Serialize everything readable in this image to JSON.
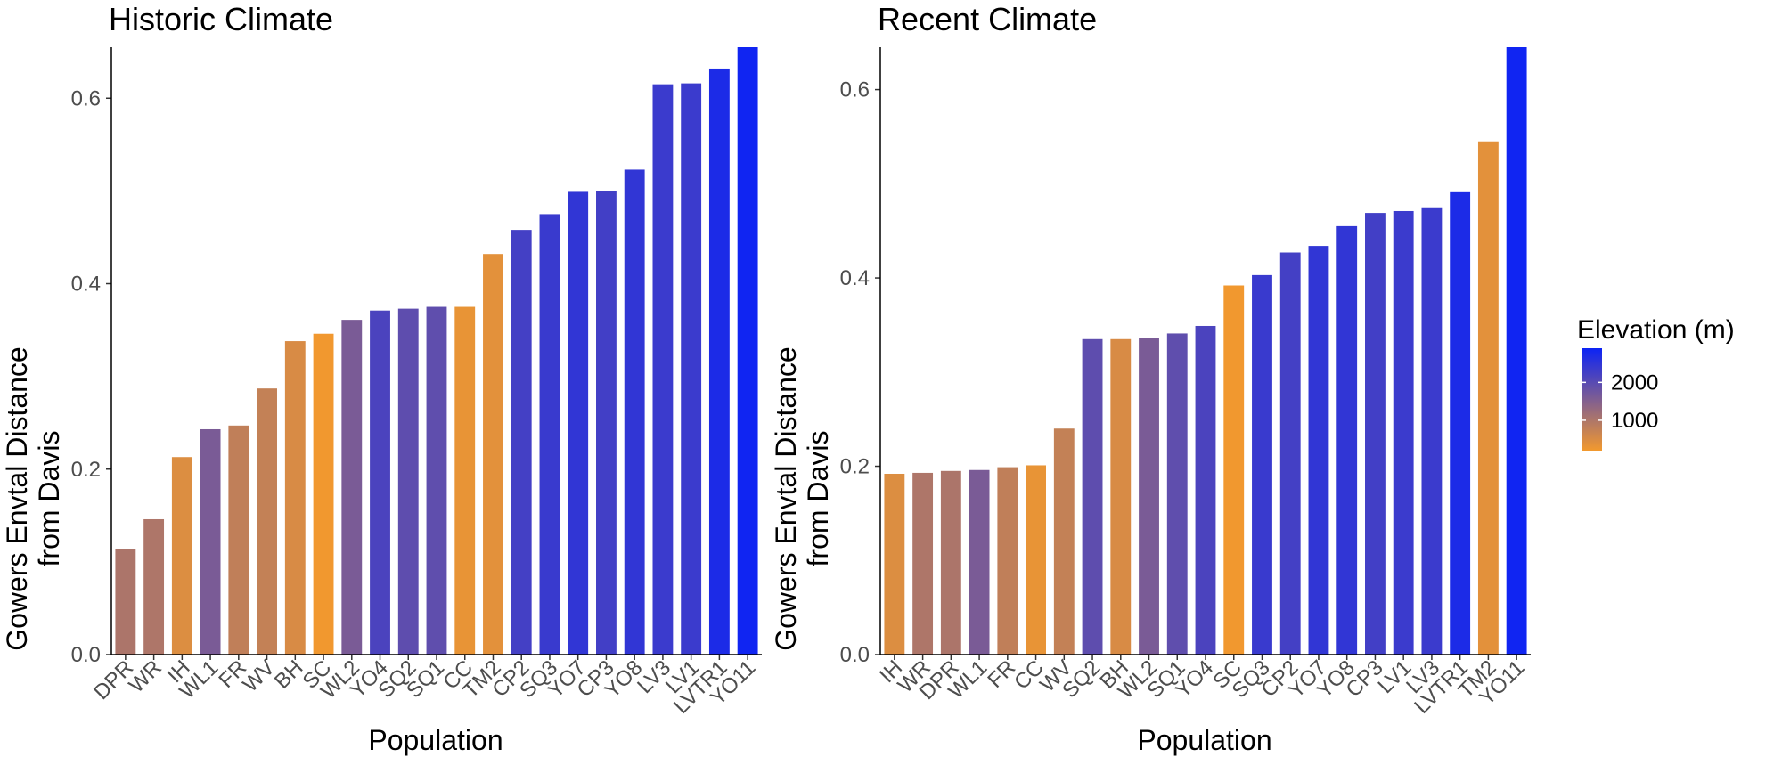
{
  "chart_data": [
    {
      "type": "bar",
      "title": "Historic Climate",
      "xlabel": "Population",
      "ylabel": "Gowers Envtal Distance from Davis",
      "ylabel_lines": [
        "Gowers Envtal Distance",
        "from Davis"
      ],
      "ylim": [
        0,
        0.655
      ],
      "yticks": [
        0.0,
        0.2,
        0.4,
        0.6
      ],
      "ytick_labels": [
        "0.0",
        "0.2",
        "0.4",
        "0.6"
      ],
      "categories": [
        "DPR",
        "WR",
        "IH",
        "WL1",
        "FR",
        "WV",
        "BH",
        "SC",
        "WL2",
        "YO4",
        "SQ2",
        "SQ1",
        "CC",
        "TM2",
        "CP2",
        "SQ3",
        "YO7",
        "CP3",
        "YO8",
        "LV3",
        "LV1",
        "LVTR1",
        "YO11"
      ],
      "values": [
        0.114,
        0.146,
        0.213,
        0.243,
        0.247,
        0.287,
        0.338,
        0.346,
        0.361,
        0.371,
        0.373,
        0.375,
        0.375,
        0.432,
        0.458,
        0.475,
        0.499,
        0.5,
        0.523,
        0.615,
        0.616,
        0.632,
        0.67
      ],
      "elevation_m": [
        1019,
        1000,
        454,
        1613,
        787,
        748,
        511,
        217,
        1613,
        2160,
        1934,
        1921,
        313,
        379,
        2244,
        2373,
        2470,
        2266,
        2470,
        2353,
        2353,
        2710,
        2855
      ]
    },
    {
      "type": "bar",
      "title": "Recent Climate",
      "xlabel": "Population",
      "ylabel": "Gowers Envtal Distance from Davis",
      "ylabel_lines": [
        "Gowers Envtal Distance",
        "from Davis"
      ],
      "ylim": [
        0,
        0.645
      ],
      "yticks": [
        0.0,
        0.2,
        0.4,
        0.6
      ],
      "ytick_labels": [
        "0.0",
        "0.2",
        "0.4",
        "0.6"
      ],
      "categories": [
        "IH",
        "WR",
        "DPR",
        "WL1",
        "FR",
        "CC",
        "WV",
        "SQ2",
        "BH",
        "WL2",
        "SQ1",
        "YO4",
        "SC",
        "SQ3",
        "CP2",
        "YO7",
        "YO8",
        "CP3",
        "LV1",
        "LV3",
        "LVTR1",
        "TM2",
        "YO11"
      ],
      "values": [
        0.192,
        0.193,
        0.195,
        0.196,
        0.199,
        0.201,
        0.24,
        0.335,
        0.335,
        0.336,
        0.341,
        0.349,
        0.392,
        0.403,
        0.427,
        0.434,
        0.455,
        0.469,
        0.471,
        0.475,
        0.491,
        0.545,
        0.66
      ],
      "elevation_m": [
        454,
        1000,
        1019,
        1613,
        787,
        313,
        748,
        1934,
        511,
        1613,
        1921,
        2160,
        217,
        2373,
        2244,
        2470,
        2470,
        2266,
        2353,
        2353,
        2710,
        379,
        2855
      ]
    }
  ],
  "legend": {
    "title": "Elevation (m)",
    "breaks": [
      2000,
      1000
    ],
    "break_labels": [
      "2000",
      "1000"
    ],
    "range": [
      200,
      2900
    ],
    "low_color": "#F2992E",
    "high_color": "#0C23F5"
  }
}
